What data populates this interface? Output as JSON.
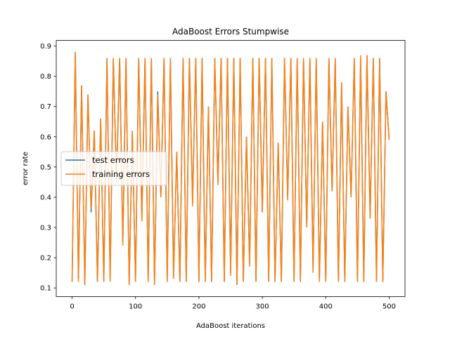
{
  "chart_data": {
    "type": "line",
    "title": "AdaBoost Errors Stumpwise",
    "xlabel": "AdaBoost iterations",
    "ylabel": "error rate",
    "x": [
      0,
      5,
      10,
      15,
      20,
      25,
      30,
      35,
      40,
      45,
      50,
      55,
      60,
      65,
      70,
      75,
      80,
      85,
      90,
      95,
      100,
      105,
      110,
      115,
      120,
      125,
      130,
      135,
      140,
      145,
      150,
      155,
      160,
      165,
      170,
      175,
      180,
      185,
      190,
      195,
      200,
      205,
      210,
      215,
      220,
      225,
      230,
      235,
      240,
      245,
      250,
      255,
      260,
      265,
      270,
      275,
      280,
      285,
      290,
      295,
      300,
      305,
      310,
      315,
      320,
      325,
      330,
      335,
      340,
      345,
      350,
      355,
      360,
      365,
      370,
      375,
      380,
      385,
      390,
      395,
      400,
      405,
      410,
      415,
      420,
      425,
      430,
      435,
      440,
      445,
      450,
      455,
      460,
      465,
      470,
      475,
      480,
      485,
      490,
      495,
      500
    ],
    "series": [
      {
        "name": "test errors",
        "color": "#1f77b4",
        "values": [
          0.12,
          0.88,
          0.13,
          0.77,
          0.11,
          0.74,
          0.35,
          0.62,
          0.12,
          0.66,
          0.12,
          0.86,
          0.13,
          0.86,
          0.45,
          0.86,
          0.25,
          0.86,
          0.11,
          0.62,
          0.12,
          0.86,
          0.33,
          0.86,
          0.12,
          0.86,
          0.11,
          0.75,
          0.4,
          0.86,
          0.12,
          0.86,
          0.14,
          0.55,
          0.12,
          0.86,
          0.12,
          0.86,
          0.38,
          0.86,
          0.12,
          0.86,
          0.12,
          0.7,
          0.12,
          0.86,
          0.45,
          0.86,
          0.12,
          0.86,
          0.15,
          0.86,
          0.11,
          0.86,
          0.12,
          0.6,
          0.18,
          0.86,
          0.12,
          0.86,
          0.35,
          0.86,
          0.12,
          0.86,
          0.12,
          0.58,
          0.12,
          0.86,
          0.4,
          0.86,
          0.12,
          0.86,
          0.12,
          0.86,
          0.3,
          0.86,
          0.16,
          0.86,
          0.12,
          0.65,
          0.12,
          0.86,
          0.42,
          0.86,
          0.12,
          0.78,
          0.12,
          0.7,
          0.4,
          0.86,
          0.12,
          0.86,
          0.12,
          0.87,
          0.33,
          0.86,
          0.12,
          0.86,
          0.12,
          0.75,
          0.59
        ]
      },
      {
        "name": "training errors",
        "color": "#ff7f0e",
        "values": [
          0.12,
          0.88,
          0.12,
          0.77,
          0.11,
          0.74,
          0.36,
          0.62,
          0.12,
          0.66,
          0.12,
          0.86,
          0.12,
          0.86,
          0.45,
          0.86,
          0.24,
          0.86,
          0.11,
          0.62,
          0.12,
          0.86,
          0.32,
          0.86,
          0.12,
          0.86,
          0.11,
          0.74,
          0.4,
          0.86,
          0.12,
          0.86,
          0.13,
          0.55,
          0.12,
          0.86,
          0.12,
          0.86,
          0.37,
          0.86,
          0.12,
          0.86,
          0.12,
          0.7,
          0.12,
          0.86,
          0.44,
          0.86,
          0.12,
          0.86,
          0.14,
          0.86,
          0.11,
          0.86,
          0.12,
          0.6,
          0.17,
          0.86,
          0.12,
          0.86,
          0.35,
          0.86,
          0.12,
          0.86,
          0.12,
          0.58,
          0.12,
          0.86,
          0.39,
          0.86,
          0.12,
          0.86,
          0.12,
          0.86,
          0.3,
          0.86,
          0.15,
          0.86,
          0.12,
          0.65,
          0.12,
          0.86,
          0.42,
          0.86,
          0.12,
          0.78,
          0.12,
          0.7,
          0.4,
          0.86,
          0.12,
          0.87,
          0.12,
          0.87,
          0.33,
          0.86,
          0.12,
          0.86,
          0.12,
          0.75,
          0.59
        ]
      }
    ],
    "xlim": [
      -25,
      525
    ],
    "xticks": [
      0,
      100,
      200,
      300,
      400,
      500
    ],
    "ylim": [
      0.0715,
      0.9185
    ],
    "yticks": [
      0.1,
      0.2,
      0.3,
      0.4,
      0.5,
      0.6,
      0.7,
      0.8,
      0.9
    ],
    "legend": "center left",
    "grid": false
  }
}
